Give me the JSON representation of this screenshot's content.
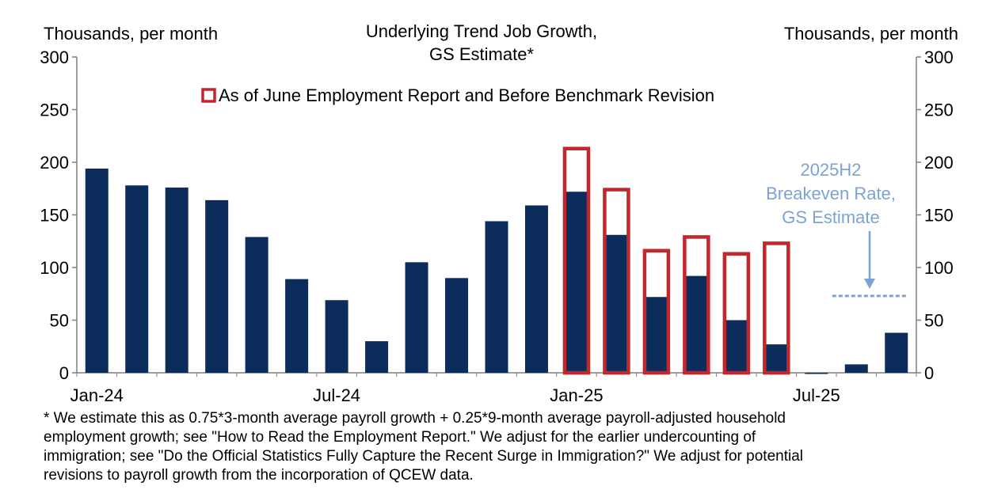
{
  "chart_data": {
    "type": "bar",
    "title": "Underlying Trend Job Growth,",
    "subtitle": "GS Estimate*",
    "ylabel_left": "Thousands, per month",
    "ylabel_right": "Thousands, per month",
    "ylim": [
      0,
      300
    ],
    "yticks": [
      0,
      50,
      100,
      150,
      200,
      250,
      300
    ],
    "xtick_labels": [
      {
        "label": "Jan-24",
        "index": 0
      },
      {
        "label": "Jul-24",
        "index": 6
      },
      {
        "label": "Jan-25",
        "index": 12
      },
      {
        "label": "Jul-25",
        "index": 18
      }
    ],
    "categories": [
      "Jan-24",
      "Feb-24",
      "Mar-24",
      "Apr-24",
      "May-24",
      "Jun-24",
      "Jul-24",
      "Aug-24",
      "Sep-24",
      "Oct-24",
      "Nov-24",
      "Dec-24",
      "Jan-25",
      "Feb-25",
      "Mar-25",
      "Apr-25",
      "May-25",
      "Jun-25",
      "Jul-25",
      "Aug-25",
      "Sep-25"
    ],
    "series": [
      {
        "name": "Underlying Trend Job Growth, GS Estimate",
        "color": "#0c2d5c",
        "values": [
          194,
          178,
          176,
          164,
          129,
          89,
          69,
          30,
          105,
          90,
          144,
          159,
          172,
          131,
          72,
          92,
          50,
          27,
          -1,
          8,
          38
        ]
      },
      {
        "name": "As of June Employment Report and Before Benchmark Revision",
        "color": "#c3272b",
        "style": "outline",
        "values": [
          null,
          null,
          null,
          null,
          null,
          null,
          null,
          null,
          null,
          null,
          null,
          null,
          213,
          174,
          116,
          129,
          113,
          123,
          null,
          null,
          null
        ]
      }
    ],
    "legend": {
      "label": "As of June Employment Report and Before Benchmark Revision",
      "placement": "top-center"
    },
    "breakeven": {
      "value": 73,
      "color": "#7ba4d4",
      "label_lines": [
        "2025H2",
        "Breakeven Rate,",
        "GS Estimate"
      ],
      "start_index": 18,
      "end_index": 20
    }
  },
  "footnote": {
    "lines": [
      "* We estimate this as 0.75*3-month average payroll growth + 0.25*9-month average payroll-adjusted household",
      "employment growth; see \"How to Read the Employment Report.\" We adjust for the earlier undercounting of",
      "immigration; see \"Do the Official Statistics Fully Capture the Recent Surge in Immigration?\" We adjust for potential",
      "revisions to payroll growth from the incorporation of QCEW data."
    ]
  }
}
